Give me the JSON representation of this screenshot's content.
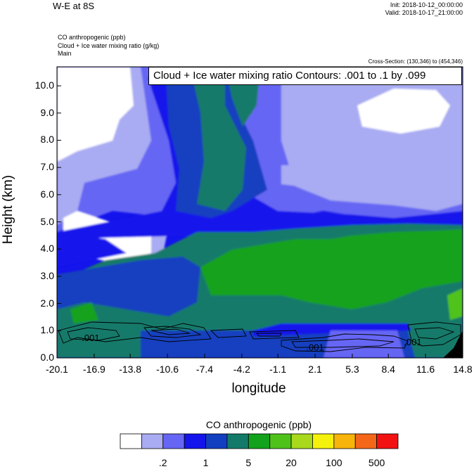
{
  "header": {
    "title": "W-E at 8S",
    "init": "Init: 2018-10-12_00:00:00",
    "valid": "Valid: 2018-10-17_21:00:00",
    "field1": "CO anthropogenic   (ppb)",
    "field2": "Cloud + Ice water mixing ratio   (g/kg)",
    "field3": "Main",
    "cross_section": "Cross-Section: (130,346) to (454,346)",
    "contour_box": "Cloud + Ice water mixing ratio Contours: .001 to .1 by .099"
  },
  "colorbar": {
    "title": "CO anthropogenic  (ppb)",
    "colors": [
      "#ffffff",
      "#a9acf2",
      "#6666f4",
      "#1414ec",
      "#123fbf",
      "#137a6a",
      "#12a21c",
      "#4fc21a",
      "#a9d91c",
      "#f4f10c",
      "#f7b40a",
      "#f56718",
      "#f21212"
    ],
    "tick_labels": [
      ".2",
      "1",
      "5",
      "20",
      "100",
      "500"
    ]
  },
  "chart_data": {
    "type": "heatmap",
    "xlabel": "longitude",
    "ylabel": "Height (km)",
    "x_tick_labels": [
      "-20.1",
      "-16.9",
      "-13.8",
      "-10.6",
      "-7.4",
      "-4.2",
      "-1.1",
      "2.1",
      "5.3",
      "8.4",
      "11.6",
      "14.8"
    ],
    "y_tick_labels": [
      "0.0",
      "1.0",
      "2.0",
      "3.0",
      "4.0",
      "5.0",
      "6.0",
      "7.0",
      "8.0",
      "9.0",
      "10.0"
    ],
    "xlim": [
      -20.1,
      14.8
    ],
    "ylim": [
      0.0,
      10.7
    ],
    "contour_labels": [
      {
        "text": ".001",
        "x": -17.2,
        "y": 0.75
      },
      {
        "text": ".001",
        "x": 2.1,
        "y": 0.4
      },
      {
        "text": ".001",
        "x": 10.5,
        "y": 0.6
      }
    ]
  }
}
